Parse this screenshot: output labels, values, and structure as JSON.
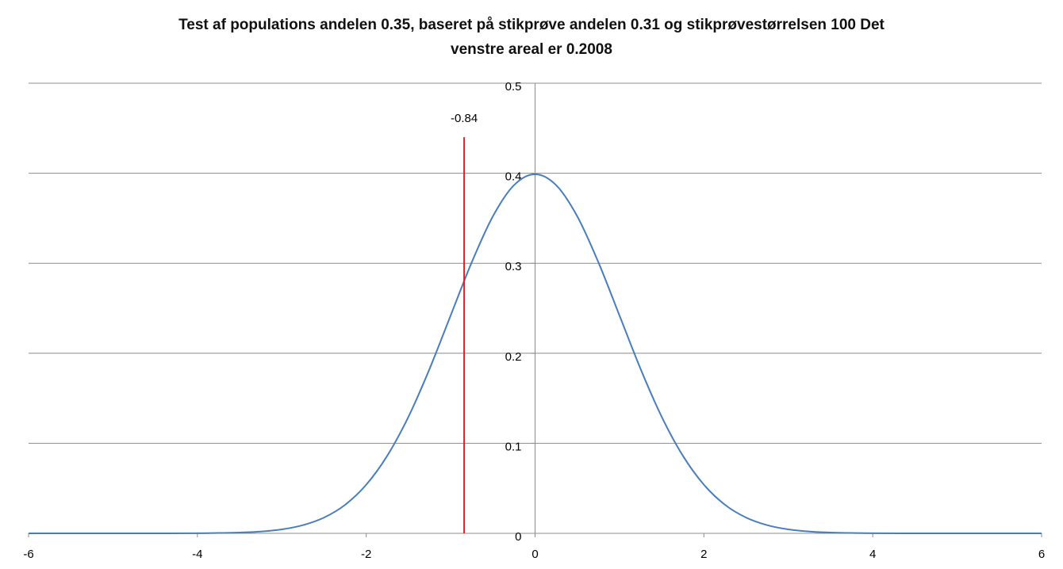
{
  "chart_data": {
    "type": "line",
    "title_lines": [
      "Test af populations andelen 0.35,  baseret på stikprøve andelen 0.31 og stikprøvestørrelsen 100 Det",
      "venstre areal er 0.2008"
    ],
    "xlabel": "",
    "ylabel": "",
    "xlim": [
      -6,
      6
    ],
    "ylim": [
      0,
      0.5
    ],
    "x_ticks": [
      -6,
      -4,
      -2,
      0,
      2,
      4,
      6
    ],
    "y_ticks": [
      0,
      0.1,
      0.2,
      0.3,
      0.4,
      0.5
    ],
    "x_tick_labels": [
      "-6",
      "-4",
      "-2",
      "0",
      "2",
      "4",
      "6"
    ],
    "y_tick_labels": [
      "0",
      "0.1",
      "0.2",
      "0.3",
      "0.4",
      "0.5"
    ],
    "grid": "horizontal",
    "legend": "none",
    "series": [
      {
        "color": "#4a7ebb",
        "x": [
          -6,
          -5.5,
          -5,
          -4.5,
          -4,
          -3.75,
          -3.5,
          -3.25,
          -3,
          -2.75,
          -2.5,
          -2.25,
          -2,
          -1.75,
          -1.5,
          -1.25,
          -1,
          -0.75,
          -0.5,
          -0.25,
          0,
          0.25,
          0.5,
          0.75,
          1,
          1.25,
          1.5,
          1.75,
          2,
          2.25,
          2.5,
          2.75,
          3,
          3.25,
          3.5,
          3.75,
          4,
          4.5,
          5,
          5.5,
          6
        ],
        "y": [
          0.0,
          0.0,
          0.0,
          0.0,
          0.0001,
          0.0004,
          0.0009,
          0.002,
          0.0044,
          0.0091,
          0.0175,
          0.0317,
          0.054,
          0.0863,
          0.1295,
          0.1826,
          0.242,
          0.3011,
          0.3521,
          0.3867,
          0.3989,
          0.3867,
          0.3521,
          0.3011,
          0.242,
          0.1826,
          0.1295,
          0.0863,
          0.054,
          0.0317,
          0.0175,
          0.0091,
          0.0044,
          0.002,
          0.0009,
          0.0004,
          0.0001,
          0.0,
          0.0,
          0.0,
          0.0
        ]
      }
    ],
    "annotation": {
      "x": -0.84,
      "y_top": 0.44,
      "label": "-0.84",
      "color": "#e8191f"
    },
    "colors": {
      "grid": "#8c8c8c",
      "axis": "#8c8c8c"
    }
  }
}
